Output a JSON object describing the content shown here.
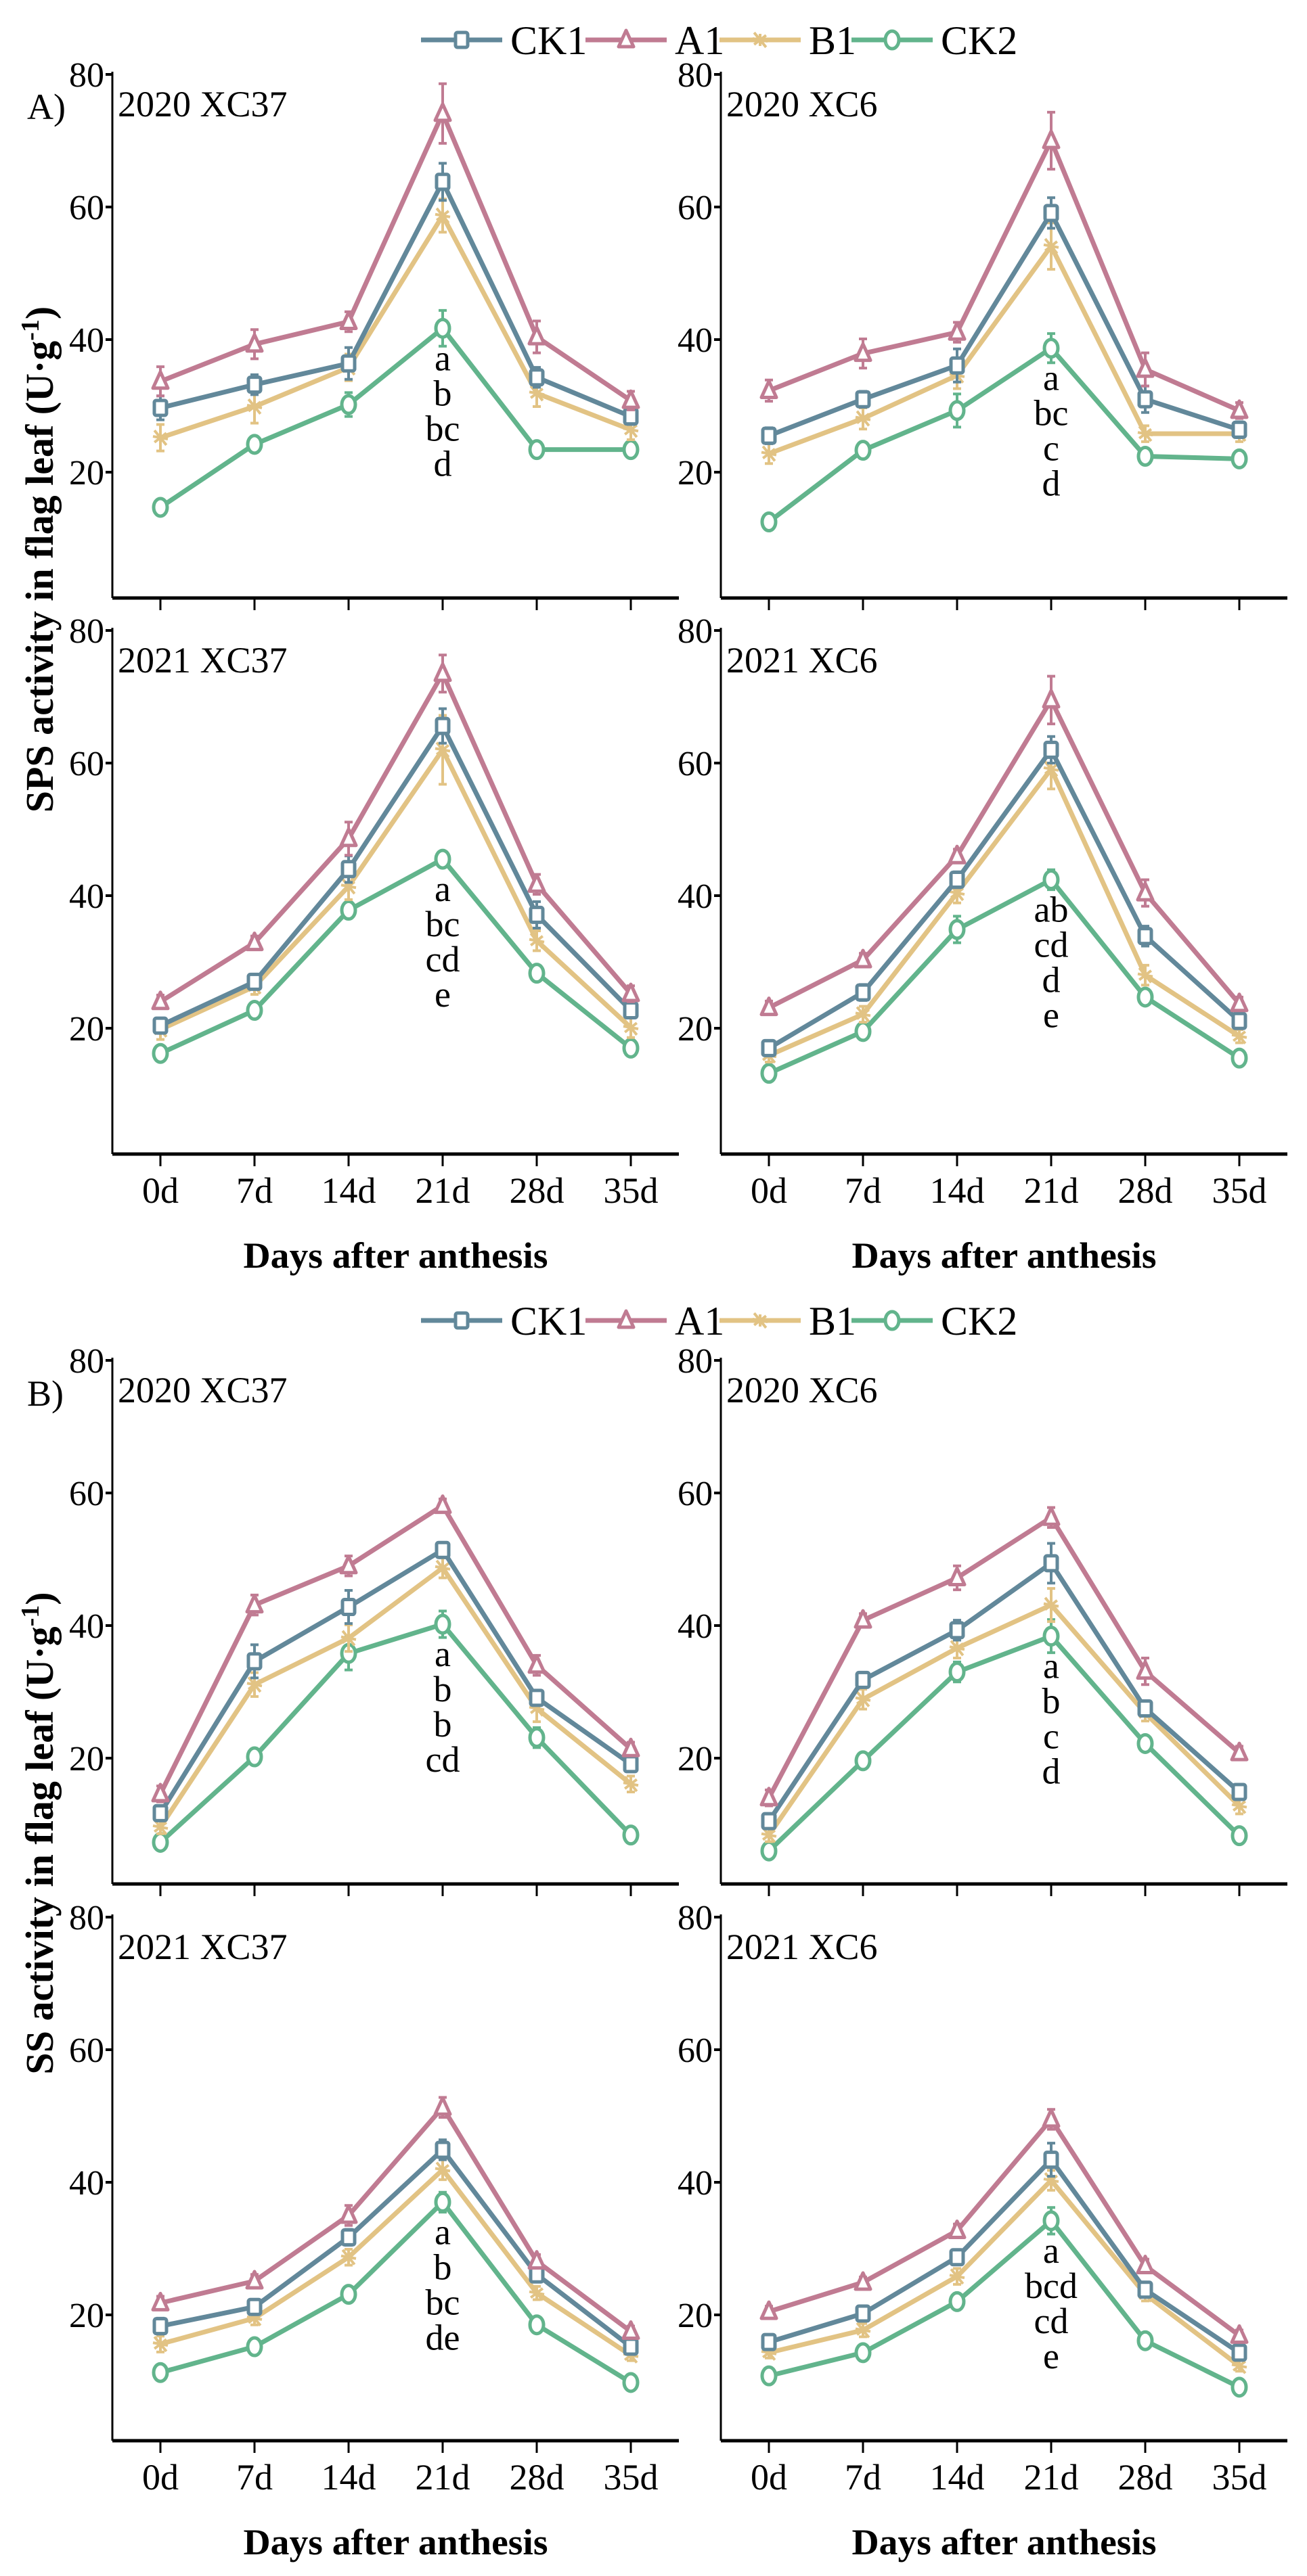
{
  "figure": {
    "panel_labels": [
      "A)",
      "B)"
    ],
    "ylabels": [
      {
        "prefix": "SPS activity in flag leaf (U·g",
        "sup": "-1",
        "suffix": ")"
      },
      {
        "prefix": "SS activity in flag leaf (U·g",
        "sup": "-1",
        "suffix": ")"
      }
    ],
    "xlabel": "Days after anthesis",
    "legend": [
      {
        "name": "CK1",
        "marker": "square",
        "color": "#62889a"
      },
      {
        "name": "A1",
        "marker": "triangle",
        "color": "#c07b92"
      },
      {
        "name": "B1",
        "marker": "asterisk",
        "color": "#e2c384"
      },
      {
        "name": "CK2",
        "marker": "circle",
        "color": "#62b48c"
      }
    ]
  },
  "chart_data": [
    {
      "type": "line",
      "title": "2020  XC37",
      "xlabel": "Days after anthesis",
      "ylabel": "SPS activity in flag leaf (U·g-1)",
      "categories": [
        "0d",
        "7d",
        "14d",
        "21d",
        "28d",
        "35d"
      ],
      "ylim": [
        0,
        80
      ],
      "yticks": [
        20,
        40,
        60,
        80
      ],
      "grid": false,
      "letters": [
        "a",
        "b",
        "bc",
        "d"
      ],
      "series": [
        {
          "name": "CK1",
          "values": [
            29.7,
            33.2,
            36.4,
            63.8,
            34.3,
            28.4
          ],
          "err": [
            1.8,
            1.5,
            2.4,
            2.8,
            1.5,
            1.2
          ]
        },
        {
          "name": "A1",
          "values": [
            33.7,
            39.3,
            42.7,
            74.1,
            40.4,
            30.8
          ],
          "err": [
            2.2,
            2.2,
            1.5,
            4.5,
            2.4,
            1.4
          ]
        },
        {
          "name": "B1",
          "values": [
            25.2,
            29.9,
            35.8,
            58.7,
            31.9,
            26.4
          ],
          "err": [
            2.0,
            2.5,
            2.0,
            2.5,
            2.0,
            1.5
          ]
        },
        {
          "name": "CK2",
          "values": [
            14.7,
            24.2,
            30.2,
            41.7,
            23.4,
            23.4
          ],
          "err": [
            1.0,
            1.2,
            1.8,
            2.7,
            1.2,
            1.0
          ]
        }
      ]
    },
    {
      "type": "line",
      "title": "2020  XC6",
      "xlabel": "Days after anthesis",
      "ylabel": "SPS activity in flag leaf (U·g-1)",
      "categories": [
        "0d",
        "7d",
        "14d",
        "21d",
        "28d",
        "35d"
      ],
      "ylim": [
        0,
        80
      ],
      "yticks": [
        20,
        40,
        60,
        80
      ],
      "grid": false,
      "letters": [
        "a",
        "bc",
        "c",
        "d"
      ],
      "series": [
        {
          "name": "CK1",
          "values": [
            25.5,
            31.0,
            36.1,
            59.1,
            31.0,
            26.4
          ],
          "err": [
            1.2,
            1.2,
            2.5,
            2.3,
            2.0,
            1.2
          ]
        },
        {
          "name": "A1",
          "values": [
            32.3,
            37.9,
            41.1,
            70.0,
            35.5,
            29.3
          ],
          "err": [
            1.6,
            2.2,
            1.5,
            4.3,
            2.5,
            1.2
          ]
        },
        {
          "name": "B1",
          "values": [
            22.8,
            28.1,
            34.6,
            54.1,
            25.8,
            25.8
          ],
          "err": [
            1.5,
            1.6,
            2.0,
            3.5,
            1.2,
            1.2
          ]
        },
        {
          "name": "CK2",
          "values": [
            12.5,
            23.3,
            29.3,
            38.7,
            22.4,
            22.0
          ],
          "err": [
            1.0,
            1.0,
            2.5,
            2.2,
            1.0,
            1.0
          ]
        }
      ]
    },
    {
      "type": "line",
      "title": "2021  XC37",
      "xlabel": "Days after anthesis",
      "ylabel": "SPS activity in flag leaf (U·g-1)",
      "categories": [
        "0d",
        "7d",
        "14d",
        "21d",
        "28d",
        "35d"
      ],
      "ylim": [
        0,
        80
      ],
      "yticks": [
        20,
        40,
        60,
        80
      ],
      "grid": false,
      "letters": [
        "a",
        "bc",
        "cd",
        "e"
      ],
      "series": [
        {
          "name": "CK1",
          "values": [
            20.4,
            27.0,
            44.0,
            65.6,
            37.1,
            22.7
          ],
          "err": [
            1.0,
            1.0,
            2.0,
            2.6,
            2.0,
            1.0
          ]
        },
        {
          "name": "A1",
          "values": [
            24.0,
            32.9,
            48.6,
            73.5,
            41.7,
            25.2
          ],
          "err": [
            1.0,
            1.0,
            2.5,
            2.8,
            1.5,
            1.2
          ]
        },
        {
          "name": "B1",
          "values": [
            19.8,
            26.3,
            41.4,
            62.0,
            33.2,
            20.1
          ],
          "err": [
            1.5,
            1.2,
            2.0,
            5.2,
            1.5,
            1.5
          ]
        },
        {
          "name": "CK2",
          "values": [
            16.2,
            22.7,
            37.8,
            45.5,
            28.3,
            17.0
          ],
          "err": [
            1.0,
            1.0,
            1.2,
            1.0,
            1.0,
            1.0
          ]
        }
      ]
    },
    {
      "type": "line",
      "title": "2021  XC6",
      "xlabel": "Days after anthesis",
      "ylabel": "SPS activity in flag leaf (U·g-1)",
      "categories": [
        "0d",
        "7d",
        "14d",
        "21d",
        "28d",
        "35d"
      ],
      "ylim": [
        0,
        80
      ],
      "yticks": [
        20,
        40,
        60,
        80
      ],
      "grid": false,
      "letters": [
        "ab",
        "cd",
        "d",
        "e"
      ],
      "series": [
        {
          "name": "CK1",
          "values": [
            17.0,
            25.4,
            42.4,
            62.0,
            33.9,
            21.1
          ],
          "err": [
            0.8,
            1.2,
            1.2,
            2.0,
            1.5,
            1.0
          ]
        },
        {
          "name": "A1",
          "values": [
            23.1,
            30.3,
            46.0,
            69.5,
            40.4,
            23.7
          ],
          "err": [
            1.0,
            1.0,
            1.0,
            3.6,
            2.0,
            1.0
          ]
        },
        {
          "name": "B1",
          "values": [
            15.9,
            22.1,
            40.4,
            59.1,
            28.0,
            18.8
          ],
          "err": [
            1.0,
            1.2,
            1.5,
            3.0,
            1.5,
            1.0
          ]
        },
        {
          "name": "CK2",
          "values": [
            13.2,
            19.5,
            34.9,
            42.4,
            24.7,
            15.5
          ],
          "err": [
            0.8,
            1.0,
            2.0,
            1.5,
            1.0,
            0.8
          ]
        }
      ]
    },
    {
      "type": "line",
      "title": "2020  XC37",
      "xlabel": "Days after anthesis",
      "ylabel": "SS activity in flag leaf (U·g-1)",
      "categories": [
        "0d",
        "7d",
        "14d",
        "21d",
        "28d",
        "35d"
      ],
      "ylim": [
        0,
        80
      ],
      "yticks": [
        20,
        40,
        60,
        80
      ],
      "grid": false,
      "letters": [
        "a",
        "b",
        "b",
        "cd"
      ],
      "series": [
        {
          "name": "CK1",
          "values": [
            11.7,
            34.6,
            42.8,
            51.4,
            29.1,
            19.1
          ],
          "err": [
            0.8,
            2.5,
            2.5,
            1.0,
            1.0,
            1.0
          ]
        },
        {
          "name": "A1",
          "values": [
            14.6,
            43.1,
            49.0,
            58.1,
            34.0,
            21.4
          ],
          "err": [
            1.2,
            1.5,
            1.5,
            1.0,
            1.5,
            1.0
          ]
        },
        {
          "name": "B1",
          "values": [
            9.6,
            31.1,
            38.1,
            48.7,
            27.5,
            16.1
          ],
          "err": [
            1.0,
            1.8,
            2.0,
            1.5,
            2.0,
            1.2
          ]
        },
        {
          "name": "CK2",
          "values": [
            7.3,
            20.2,
            35.8,
            40.2,
            23.1,
            8.4
          ],
          "err": [
            0.8,
            0.8,
            2.5,
            2.0,
            1.5,
            0.8
          ]
        }
      ]
    },
    {
      "type": "line",
      "title": "2020  XC6",
      "xlabel": "Days after anthesis",
      "ylabel": "SS activity in flag leaf (U·g-1)",
      "categories": [
        "0d",
        "7d",
        "14d",
        "21d",
        "28d",
        "35d"
      ],
      "ylim": [
        0,
        80
      ],
      "yticks": [
        20,
        40,
        60,
        80
      ],
      "grid": false,
      "letters": [
        "a",
        "b",
        "c",
        "d"
      ],
      "series": [
        {
          "name": "CK1",
          "values": [
            10.5,
            31.8,
            39.3,
            49.4,
            27.5,
            14.9
          ],
          "err": [
            0.8,
            1.0,
            1.5,
            3.0,
            1.0,
            0.8
          ]
        },
        {
          "name": "A1",
          "values": [
            14.0,
            40.8,
            47.2,
            56.3,
            33.1,
            20.8
          ],
          "err": [
            1.2,
            1.0,
            1.8,
            1.5,
            2.0,
            1.0
          ]
        },
        {
          "name": "B1",
          "values": [
            8.4,
            28.9,
            36.6,
            43.1,
            26.8,
            12.8
          ],
          "err": [
            1.0,
            1.5,
            1.5,
            2.5,
            1.2,
            1.2
          ]
        },
        {
          "name": "CK2",
          "values": [
            6.0,
            19.6,
            33.0,
            38.4,
            22.2,
            8.3
          ],
          "err": [
            0.8,
            1.0,
            1.5,
            2.5,
            1.0,
            0.8
          ]
        }
      ]
    },
    {
      "type": "line",
      "title": "2021  XC37",
      "xlabel": "Days after anthesis",
      "ylabel": "SS activity in flag leaf (U·g-1)",
      "categories": [
        "0d",
        "7d",
        "14d",
        "21d",
        "28d",
        "35d"
      ],
      "ylim": [
        0,
        80
      ],
      "yticks": [
        20,
        40,
        60,
        80
      ],
      "grid": false,
      "letters": [
        "a",
        "b",
        "bc",
        "de"
      ],
      "series": [
        {
          "name": "CK1",
          "values": [
            18.3,
            21.2,
            31.7,
            44.9,
            26.1,
            15.2
          ],
          "err": [
            1.2,
            1.0,
            1.2,
            1.5,
            1.0,
            0.8
          ]
        },
        {
          "name": "A1",
          "values": [
            21.8,
            25.1,
            35.0,
            51.3,
            28.1,
            17.5
          ],
          "err": [
            1.0,
            1.0,
            1.5,
            1.5,
            1.0,
            0.8
          ]
        },
        {
          "name": "B1",
          "values": [
            15.6,
            19.5,
            28.7,
            41.9,
            23.3,
            13.9
          ],
          "err": [
            1.2,
            1.0,
            1.2,
            1.5,
            1.0,
            0.8
          ]
        },
        {
          "name": "CK2",
          "values": [
            11.3,
            15.2,
            23.1,
            37.0,
            18.5,
            9.8
          ],
          "err": [
            0.8,
            0.8,
            0.8,
            1.5,
            0.8,
            0.8
          ]
        }
      ]
    },
    {
      "type": "line",
      "title": "2021  XC6",
      "xlabel": "Days after anthesis",
      "ylabel": "SS activity in flag leaf (U·g-1)",
      "categories": [
        "0d",
        "7d",
        "14d",
        "21d",
        "28d",
        "35d"
      ],
      "ylim": [
        0,
        80
      ],
      "yticks": [
        20,
        40,
        60,
        80
      ],
      "grid": false,
      "letters": [
        "a",
        "bcd",
        "cd",
        "e"
      ],
      "series": [
        {
          "name": "CK1",
          "values": [
            15.9,
            20.2,
            28.7,
            43.4,
            23.8,
            14.3
          ],
          "err": [
            0.8,
            0.8,
            1.0,
            2.5,
            1.0,
            0.8
          ]
        },
        {
          "name": "A1",
          "values": [
            20.5,
            24.9,
            32.7,
            49.5,
            27.4,
            16.9
          ],
          "err": [
            0.8,
            0.8,
            1.0,
            1.5,
            1.0,
            0.8
          ]
        },
        {
          "name": "B1",
          "values": [
            14.3,
            17.7,
            25.8,
            40.3,
            23.1,
            12.3
          ],
          "err": [
            0.8,
            1.0,
            1.2,
            1.5,
            1.0,
            0.8
          ]
        },
        {
          "name": "CK2",
          "values": [
            10.8,
            14.3,
            22.0,
            34.2,
            16.1,
            9.1
          ],
          "err": [
            0.8,
            0.8,
            1.2,
            2.0,
            0.8,
            0.8
          ]
        }
      ]
    }
  ]
}
